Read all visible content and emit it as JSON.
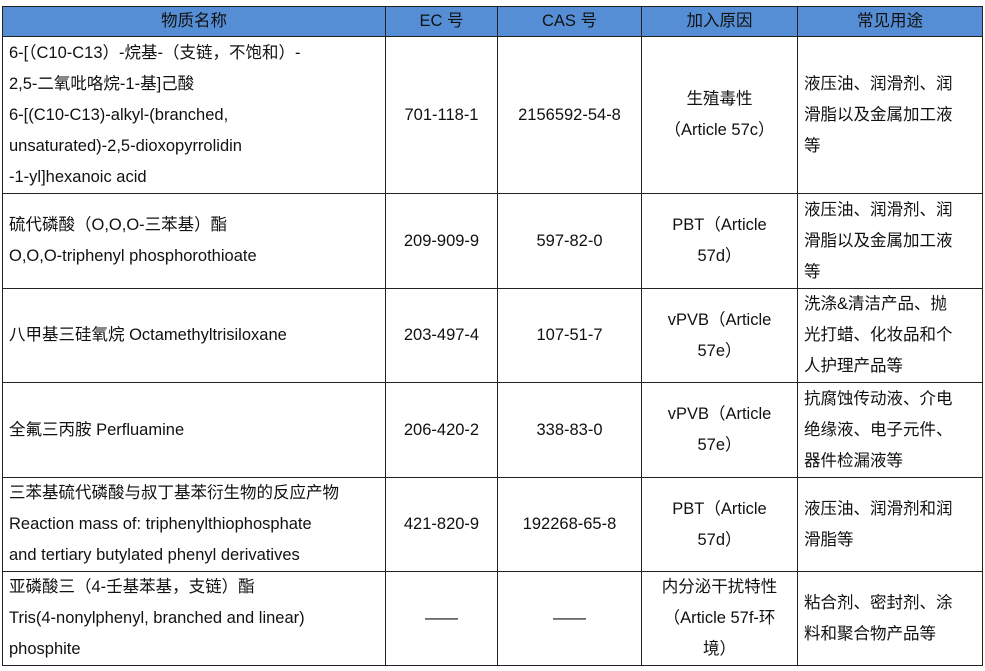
{
  "table": {
    "header_color": "#568ed6",
    "headers": [
      "物质名称",
      "EC 号",
      "CAS 号",
      "加入原因",
      "常见用途"
    ],
    "rows": [
      {
        "name": [
          "6-[（C10-C13）-烷基-（支链，不饱和）-",
          "2,5-二氧吡咯烷-1-基]己酸",
          "6-[(C10-C13)-alkyl-(branched,",
          "unsaturated)-2,5-dioxopyrrolidin",
          "-1-yl]hexanoic acid"
        ],
        "ec": "701-118-1",
        "cas": "2156592-54-8",
        "reason": [
          "生殖毒性",
          "（Article 57c）"
        ],
        "uses": [
          "液压油、润滑剂、润",
          "滑脂以及金属加工液",
          "等"
        ]
      },
      {
        "name": [
          "硫代磷酸（O,O,O-三苯基）酯",
          "O,O,O-triphenyl phosphorothioate"
        ],
        "ec": "209-909-9",
        "cas": "597-82-0",
        "reason": [
          "PBT（Article",
          "57d）"
        ],
        "uses": [
          "液压油、润滑剂、润",
          "滑脂以及金属加工液",
          "等"
        ]
      },
      {
        "name": [
          "八甲基三硅氧烷 Octamethyltrisiloxane"
        ],
        "ec": "203-497-4",
        "cas": "107-51-7",
        "reason": [
          "vPVB（Article",
          "57e）"
        ],
        "uses": [
          "洗涤&清洁产品、抛",
          "光打蜡、化妆品和个",
          "人护理产品等"
        ]
      },
      {
        "name": [
          "全氟三丙胺 Perfluamine"
        ],
        "ec": "206-420-2",
        "cas": "338-83-0",
        "reason": [
          "vPVB（Article",
          "57e）"
        ],
        "uses": [
          "抗腐蚀传动液、介电",
          "绝缘液、电子元件、",
          "器件检漏液等"
        ]
      },
      {
        "name": [
          "三苯基硫代磷酸与叔丁基苯衍生物的反应产物",
          "Reaction mass of: triphenylthiophosphate",
          "and tertiary butylated phenyl derivatives"
        ],
        "ec": "421-820-9",
        "cas": "192268-65-8",
        "reason": [
          "PBT（Article",
          "57d）"
        ],
        "uses": [
          "液压油、润滑剂和润",
          "滑脂等"
        ]
      },
      {
        "name": [
          "亚磷酸三（4-壬基苯基，支链）酯",
          "Tris(4-nonylphenyl, branched and linear)",
          "phosphite"
        ],
        "ec": "——",
        "cas": "——",
        "reason": [
          "内分泌干扰特性",
          "（Article 57f-环",
          "境）"
        ],
        "uses": [
          "粘合剂、密封剂、涂",
          "料和聚合物产品等"
        ]
      }
    ]
  }
}
